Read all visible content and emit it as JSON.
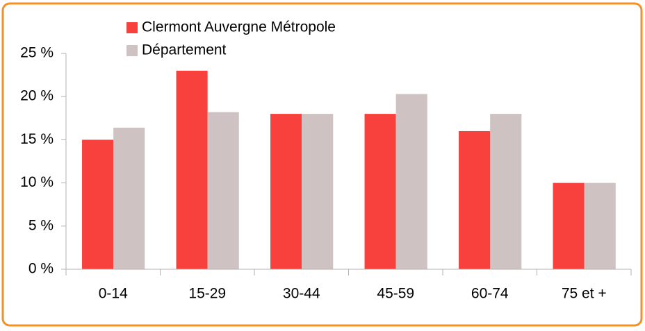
{
  "chart_data": {
    "type": "bar",
    "categories": [
      "0-14",
      "15-29",
      "30-44",
      "45-59",
      "60-74",
      "75 et +"
    ],
    "series": [
      {
        "name": "Clermont Auvergne Métropole",
        "color": "#f8413c",
        "values": [
          15,
          23,
          18,
          18,
          16,
          10
        ]
      },
      {
        "name": "Département",
        "color": "#cec3c2",
        "values": [
          16.4,
          18.2,
          18,
          20.3,
          18,
          10
        ]
      }
    ],
    "ylim": [
      0,
      25
    ],
    "yticks": [
      {
        "value": 0,
        "label": "0 %"
      },
      {
        "value": 5,
        "label": "5 %"
      },
      {
        "value": 10,
        "label": "10 %"
      },
      {
        "value": 15,
        "label": "15 %"
      },
      {
        "value": 20,
        "label": "20 %"
      },
      {
        "value": 25,
        "label": "25 %"
      }
    ],
    "grid": false,
    "legend": "top"
  }
}
